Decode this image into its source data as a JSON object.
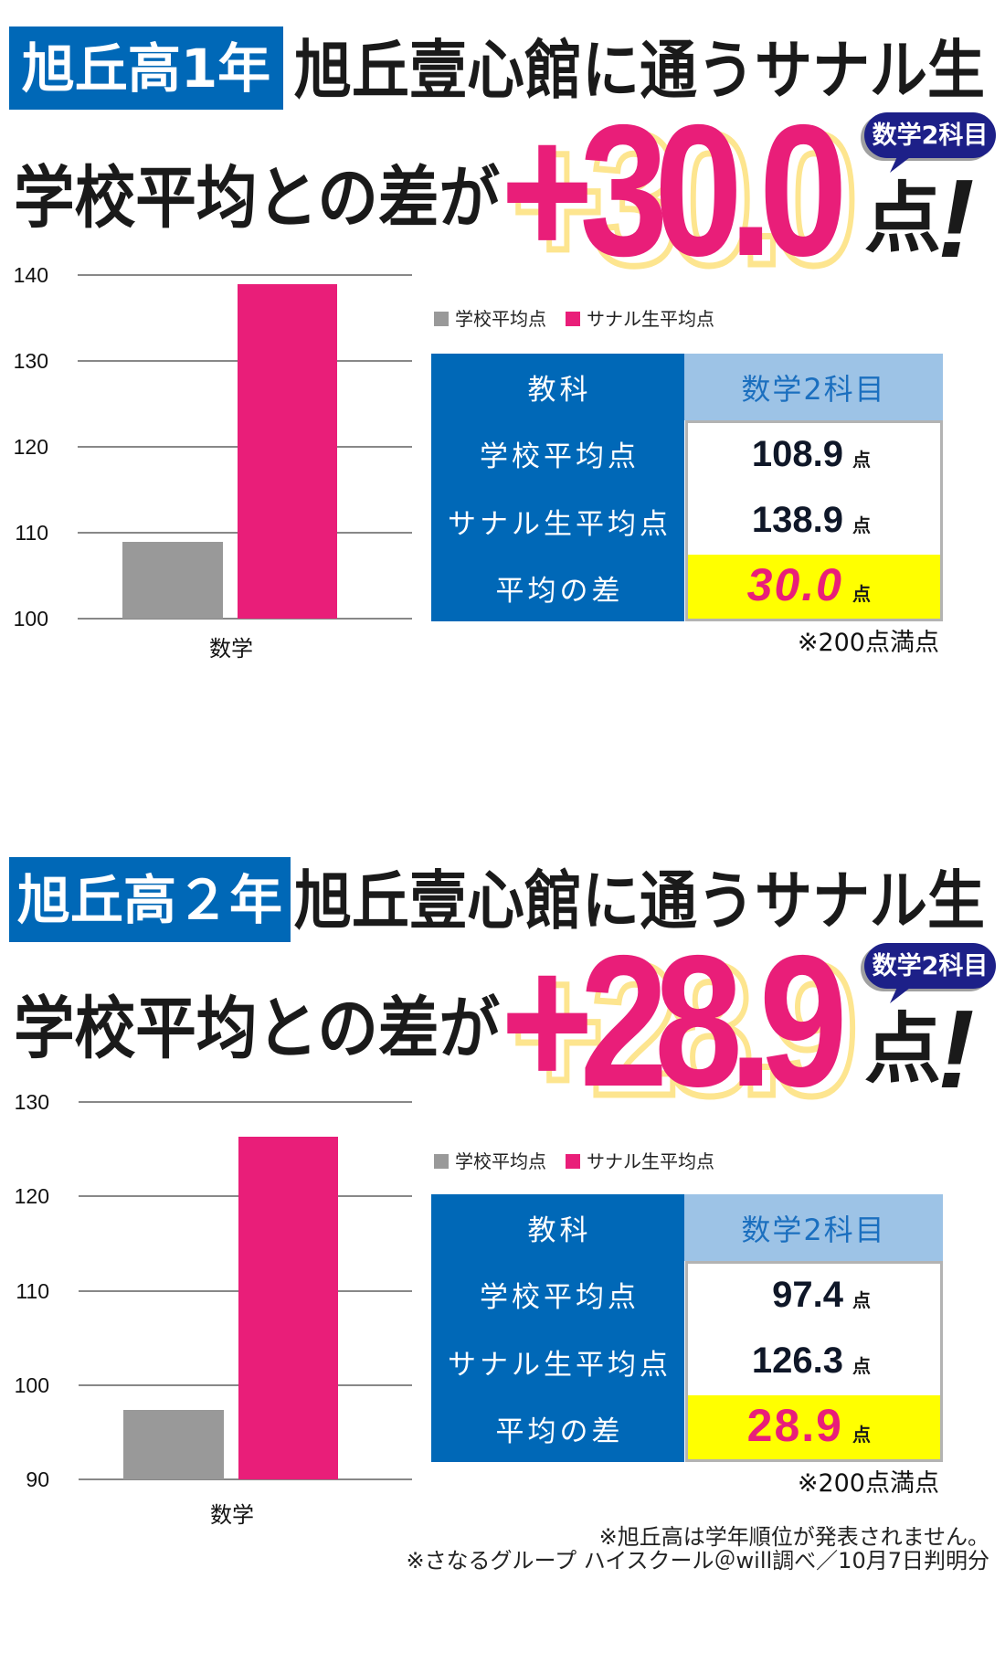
{
  "colors": {
    "pink": "#e91e79",
    "blue": "#0068b7",
    "light_blue": "#9dc3e6",
    "header_text_blue": "#1b6fbf",
    "navy": "#1d2088",
    "yellow": "#ffff00",
    "shadow_yellow": "#fde58f",
    "gray": "#999999",
    "gridline": "#888888"
  },
  "sections": [
    {
      "grade_badge": "旭丘高1年",
      "headline": "旭丘壹心館に通うサナル生",
      "subheadline": "学校平均との差が",
      "big_number": "+30.0",
      "big_unit": "点",
      "exclamation": "!",
      "bubble": "数学2科目",
      "legend": [
        {
          "label": "学校平均点"
        },
        {
          "label": "サナル生平均点"
        }
      ],
      "table": {
        "header": {
          "label": "教科",
          "value": "数学2科目"
        },
        "rows": [
          {
            "label": "学校平均点",
            "value": "108.9",
            "unit": "点"
          },
          {
            "label": "サナル生平均点",
            "value": "138.9",
            "unit": "点"
          },
          {
            "label": "平均の差",
            "value": "30.0",
            "unit": "点"
          }
        ]
      },
      "note": "※200点満点"
    },
    {
      "grade_badge": "旭丘高２年",
      "headline": "旭丘壹心館に通うサナル生",
      "subheadline": "学校平均との差が",
      "big_number": "+28.9",
      "big_unit": "点",
      "exclamation": "!",
      "bubble": "数学2科目",
      "legend": [
        {
          "label": "学校平均点"
        },
        {
          "label": "サナル生平均点"
        }
      ],
      "table": {
        "header": {
          "label": "教科",
          "value": "数学2科目"
        },
        "rows": [
          {
            "label": "学校平均点",
            "value": "97.4",
            "unit": "点"
          },
          {
            "label": "サナル生平均点",
            "value": "126.3",
            "unit": "点"
          },
          {
            "label": "平均の差",
            "value": "28.9",
            "unit": "点"
          }
        ]
      },
      "note": "※200点満点"
    }
  ],
  "footer": {
    "lines": [
      "※旭丘高は学年順位が発表されません。",
      "※さなるグループ ハイスクール＠will調べ／10月7日判明分"
    ]
  },
  "chart_data": [
    {
      "type": "bar",
      "title": "旭丘高1年 数学",
      "categories": [
        "数学"
      ],
      "series": [
        {
          "name": "学校平均点",
          "values": [
            108.9
          ],
          "color": "#999999"
        },
        {
          "name": "サナル生平均点",
          "values": [
            138.9
          ],
          "color": "#e91e79"
        }
      ],
      "xlabel": "",
      "ylabel": "",
      "ylim": [
        100,
        140
      ],
      "yticks": [
        100,
        110,
        120,
        130,
        140
      ],
      "grid": true,
      "legend_position": "right"
    },
    {
      "type": "bar",
      "title": "旭丘高2年 数学",
      "categories": [
        "数学"
      ],
      "series": [
        {
          "name": "学校平均点",
          "values": [
            97.4
          ],
          "color": "#999999"
        },
        {
          "name": "サナル生平均点",
          "values": [
            126.3
          ],
          "color": "#e91e79"
        }
      ],
      "xlabel": "",
      "ylabel": "",
      "ylim": [
        90,
        130
      ],
      "yticks": [
        90,
        100,
        110,
        120,
        130
      ],
      "grid": true,
      "legend_position": "right"
    }
  ]
}
